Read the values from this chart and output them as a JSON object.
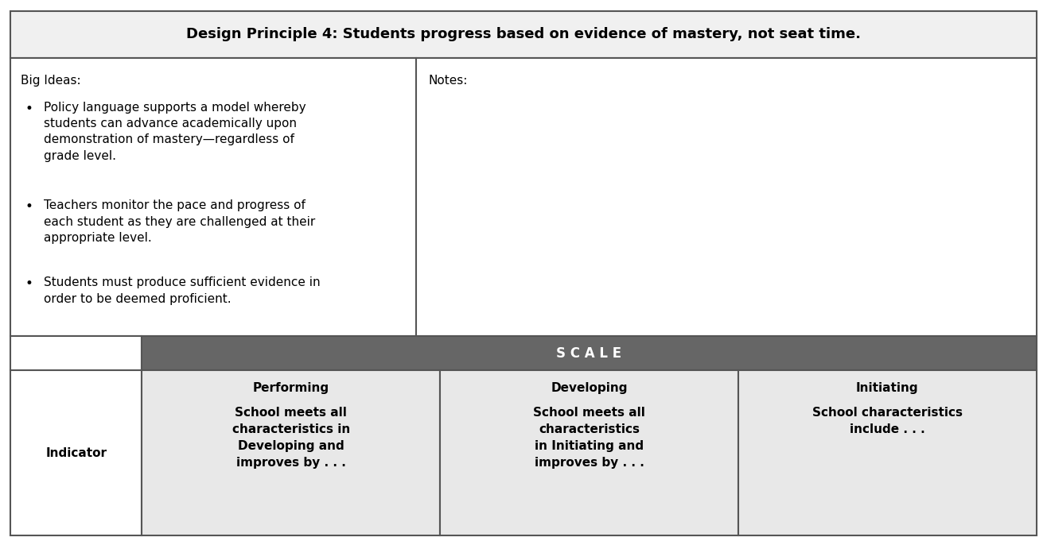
{
  "title": "Design Principle 4: Students progress based on evidence of mastery, not seat time.",
  "big_ideas_label": "Big Ideas:",
  "notes_label": "Notes:",
  "bullet_points": [
    "Policy language supports a model whereby\nstudents can advance academically upon\ndemonstration of mastery—regardless of\ngrade level.",
    "Teachers monitor the pace and progress of\neach student as they are challenged at their\nappropriate level.",
    "Students must produce sufficient evidence in\norder to be deemed proficient."
  ],
  "scale_label": "S C A L E",
  "indicator_label": "Indicator",
  "col_headers": [
    "Performing",
    "Developing",
    "Initiating"
  ],
  "col_subtext": [
    "School meets all\ncharacteristics in\nDeveloping and\nimproves by . . .",
    "School meets all\ncharacteristics\nin Initiating and\nimproves by . . .",
    "School characteristics\ninclude . . ."
  ],
  "title_bg": "#f0f0f0",
  "scale_header_bg": "#666666",
  "scale_header_text": "#ffffff",
  "col_header_bg": "#e8e8e8",
  "body_bg": "#ffffff",
  "border_color": "#555555",
  "title_fontsize": 13,
  "body_fontsize": 11,
  "scale_fontsize": 12,
  "col_fontsize": 11
}
